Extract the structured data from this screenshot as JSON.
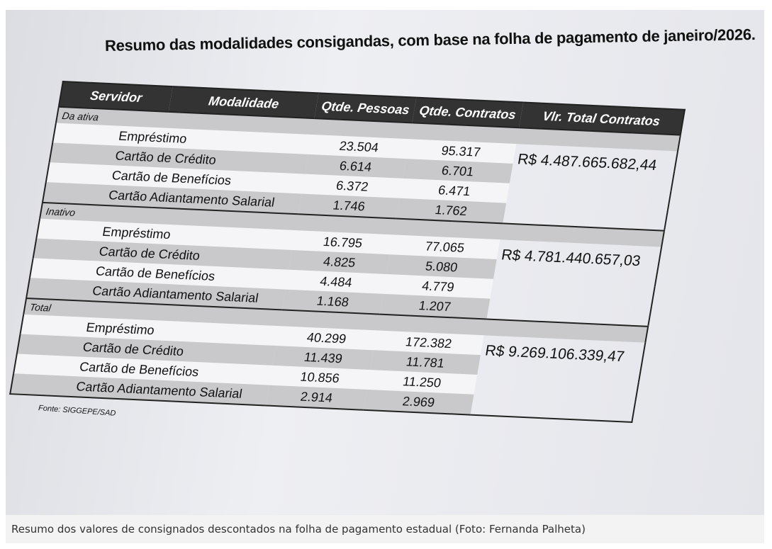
{
  "document": {
    "title": "Resumo das modalidades consigandas, com base na folha de pagamento de janeiro/2026.",
    "table": {
      "headers": [
        "Servidor",
        "Modalidade",
        "Qtde. Pessoas",
        "Qtde. Contratos",
        "Vlr. Total Contratos"
      ],
      "groups": [
        {
          "label": "Da ativa",
          "total": "R$ 4.487.665.682,44",
          "rows": [
            [
              "Empréstimo",
              "23.504",
              "95.317"
            ],
            [
              "Cartão de Crédito",
              "6.614",
              "6.701"
            ],
            [
              "Cartão de Benefícios",
              "6.372",
              "6.471"
            ],
            [
              "Cartão Adiantamento Salarial",
              "1.746",
              "1.762"
            ]
          ]
        },
        {
          "label": "Inativo",
          "total": "R$ 4.781.440.657,03",
          "rows": [
            [
              "Empréstimo",
              "16.795",
              "77.065"
            ],
            [
              "Cartão de Crédito",
              "4.825",
              "5.080"
            ],
            [
              "Cartão de Benefícios",
              "4.484",
              "4.779"
            ],
            [
              "Cartão Adiantamento Salarial",
              "1.168",
              "1.207"
            ]
          ]
        },
        {
          "label": "Total",
          "total": "R$ 9.269.106.339,47",
          "rows": [
            [
              "Empréstimo",
              "40.299",
              "172.382"
            ],
            [
              "Cartão de Crédito",
              "11.439",
              "11.781"
            ],
            [
              "Cartão de Benefícios",
              "10.856",
              "11.250"
            ],
            [
              "Cartão Adiantamento Salarial",
              "2.914",
              "2.969"
            ]
          ]
        }
      ]
    },
    "source": "Fonte: SIGGEPE/SAD",
    "caption": "Resumo dos valores de consignados descontados na folha de pagamento estadual (Foto: Fernanda Palheta)"
  }
}
